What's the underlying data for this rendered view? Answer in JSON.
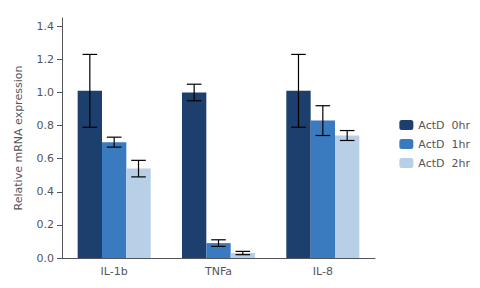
{
  "chart_data": {
    "type": "bar",
    "categories": [
      "IL-1b",
      "TNFa",
      "IL-8"
    ],
    "series": [
      {
        "name": "ActD  0hr",
        "color": "#1c3f6e",
        "values": [
          1.01,
          1.0,
          1.01
        ],
        "errors": [
          0.22,
          0.05,
          0.22
        ]
      },
      {
        "name": "ActD  1hr",
        "color": "#3a7abf",
        "values": [
          0.7,
          0.09,
          0.83
        ],
        "errors": [
          0.03,
          0.02,
          0.09
        ]
      },
      {
        "name": "ActD  2hr",
        "color": "#b8cfe8",
        "values": [
          0.54,
          0.03,
          0.74
        ],
        "errors": [
          0.05,
          0.01,
          0.03
        ]
      }
    ],
    "ylabel": "Relative mRNA expression",
    "ylim": [
      0,
      1.45
    ],
    "yticks": [
      {
        "value": 0,
        "label": "0.0"
      },
      0.2,
      0.4,
      0.6,
      0.8,
      {
        "value": 1,
        "label": "1.0"
      },
      1.2,
      1.4
    ],
    "grid": false,
    "legend": "right"
  }
}
